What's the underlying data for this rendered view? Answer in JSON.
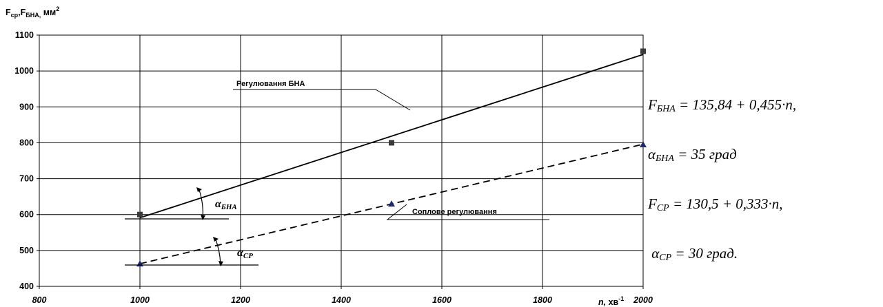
{
  "chart_data": {
    "type": "line",
    "ylabel": {
      "main": "F",
      "sub1": "ср",
      "mid": ",F",
      "sub2": "БНА,",
      "unit": " мм",
      "sup": "2"
    },
    "xlabel": {
      "main": "n,",
      "unit": " хв",
      "sup": "-1"
    },
    "xlim": [
      800,
      2000
    ],
    "ylim": [
      400,
      1100
    ],
    "x_ticks": [
      800,
      1000,
      1200,
      1400,
      1600,
      1800,
      2000
    ],
    "y_ticks": [
      400,
      500,
      600,
      700,
      800,
      900,
      1000,
      1100
    ],
    "grid": true,
    "series": [
      {
        "name": "Регулювання БНА",
        "marker": "square",
        "line_style": "solid",
        "points": [
          {
            "x": 1000,
            "y": 600
          },
          {
            "x": 1500,
            "y": 800
          },
          {
            "x": 2000,
            "y": 1055
          }
        ],
        "fit": [
          {
            "x": 1000,
            "y": 591
          },
          {
            "x": 2000,
            "y": 1046
          }
        ]
      },
      {
        "name": "Соплове регулювання",
        "marker": "triangle",
        "line_style": "dashed",
        "points": [
          {
            "x": 1000,
            "y": 463
          },
          {
            "x": 1500,
            "y": 630
          },
          {
            "x": 2000,
            "y": 795
          }
        ],
        "fit": [
          {
            "x": 1000,
            "y": 463
          },
          {
            "x": 2000,
            "y": 796
          }
        ]
      }
    ],
    "annotations": {
      "angle_bna": {
        "symbol": "α",
        "sub": "БНА"
      },
      "angle_cp": {
        "symbol": "α",
        "sub": "CP"
      }
    },
    "colors": {
      "axis": "#000000",
      "grid": "#000000",
      "square_marker": "#3a3a3a",
      "triangle_marker": "#1f2a6e"
    }
  },
  "formulas": [
    {
      "pre": "F",
      "sub": "БНА",
      "post": " = 135,84 + 0,455·n,"
    },
    {
      "pre": "α",
      "sub": "БНА",
      "post": " = 35 град"
    },
    {
      "pre": "F",
      "sub": "CP",
      "post": " = 130,5 + 0,333·n,"
    },
    {
      "pre": " α",
      "sub": "CP",
      "post": " = 30 град."
    }
  ]
}
